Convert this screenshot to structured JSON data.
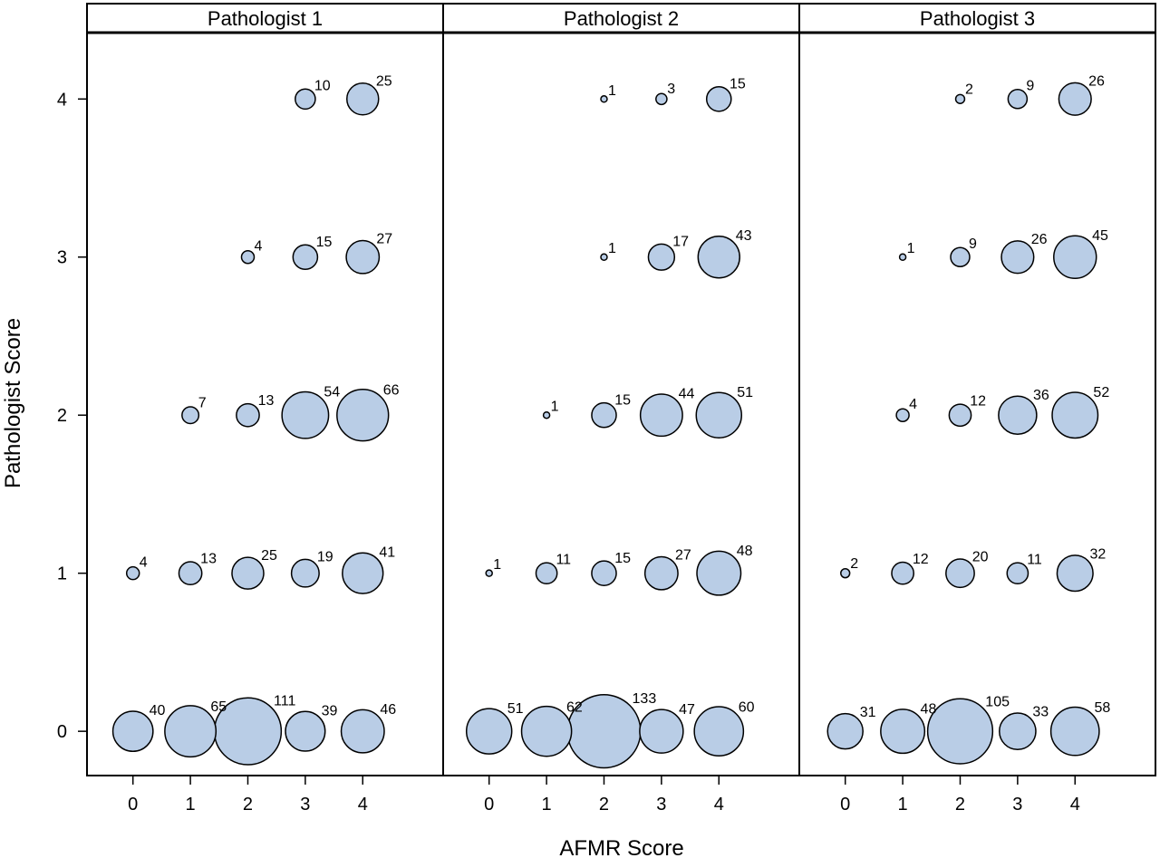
{
  "chart_data": {
    "type": "bubble",
    "xlabel": "AFMR Score",
    "ylabel": "Pathologist Score",
    "x_ticks": [
      "0",
      "1",
      "2",
      "3",
      "4"
    ],
    "y_ticks": [
      "0",
      "1",
      "2",
      "3",
      "4"
    ],
    "xlim": [
      -0.8,
      5.4
    ],
    "ylim": [
      -0.28,
      4.42
    ],
    "bubble_color": "#b9cde6",
    "grid": false,
    "legend": "none",
    "panels": [
      {
        "title": "Pathologist 1",
        "points": [
          {
            "x": 0,
            "y": 0,
            "n": 40,
            "label": "40"
          },
          {
            "x": 1,
            "y": 0,
            "n": 65,
            "label": "65"
          },
          {
            "x": 2,
            "y": 0,
            "n": 111,
            "label": "111"
          },
          {
            "x": 3,
            "y": 0,
            "n": 39,
            "label": "39"
          },
          {
            "x": 4,
            "y": 0,
            "n": 46,
            "label": "46"
          },
          {
            "x": 0,
            "y": 1,
            "n": 4,
            "label": "4"
          },
          {
            "x": 1,
            "y": 1,
            "n": 13,
            "label": "13"
          },
          {
            "x": 2,
            "y": 1,
            "n": 25,
            "label": "25"
          },
          {
            "x": 3,
            "y": 1,
            "n": 19,
            "label": "19"
          },
          {
            "x": 4,
            "y": 1,
            "n": 41,
            "label": "41"
          },
          {
            "x": 1,
            "y": 2,
            "n": 7,
            "label": "7"
          },
          {
            "x": 2,
            "y": 2,
            "n": 13,
            "label": "13"
          },
          {
            "x": 3,
            "y": 2,
            "n": 54,
            "label": "54"
          },
          {
            "x": 4,
            "y": 2,
            "n": 66,
            "label": "66"
          },
          {
            "x": 2,
            "y": 3,
            "n": 4,
            "label": "4"
          },
          {
            "x": 3,
            "y": 3,
            "n": 15,
            "label": "15"
          },
          {
            "x": 4,
            "y": 3,
            "n": 27,
            "label": "27"
          },
          {
            "x": 3,
            "y": 4,
            "n": 10,
            "label": "10"
          },
          {
            "x": 4,
            "y": 4,
            "n": 25,
            "label": "25"
          }
        ]
      },
      {
        "title": "Pathologist 2",
        "points": [
          {
            "x": 0,
            "y": 0,
            "n": 51,
            "label": "51"
          },
          {
            "x": 1,
            "y": 0,
            "n": 62,
            "label": "62"
          },
          {
            "x": 2,
            "y": 0,
            "n": 133,
            "label": "133"
          },
          {
            "x": 3,
            "y": 0,
            "n": 47,
            "label": "47"
          },
          {
            "x": 4,
            "y": 0,
            "n": 60,
            "label": "60"
          },
          {
            "x": 0,
            "y": 1,
            "n": 1,
            "label": "1"
          },
          {
            "x": 1,
            "y": 1,
            "n": 11,
            "label": "11"
          },
          {
            "x": 2,
            "y": 1,
            "n": 15,
            "label": "15"
          },
          {
            "x": 3,
            "y": 1,
            "n": 27,
            "label": "27"
          },
          {
            "x": 4,
            "y": 1,
            "n": 48,
            "label": "48"
          },
          {
            "x": 1,
            "y": 2,
            "n": 1,
            "label": "1"
          },
          {
            "x": 2,
            "y": 2,
            "n": 15,
            "label": "15"
          },
          {
            "x": 3,
            "y": 2,
            "n": 44,
            "label": "44"
          },
          {
            "x": 4,
            "y": 2,
            "n": 51,
            "label": "51"
          },
          {
            "x": 2,
            "y": 3,
            "n": 1,
            "label": "1"
          },
          {
            "x": 3,
            "y": 3,
            "n": 17,
            "label": "17"
          },
          {
            "x": 4,
            "y": 3,
            "n": 43,
            "label": "43"
          },
          {
            "x": 2,
            "y": 4,
            "n": 1,
            "label": "1"
          },
          {
            "x": 3,
            "y": 4,
            "n": 3,
            "label": "3"
          },
          {
            "x": 4,
            "y": 4,
            "n": 15,
            "label": "15"
          }
        ]
      },
      {
        "title": "Pathologist 3",
        "points": [
          {
            "x": 0,
            "y": 0,
            "n": 31,
            "label": "31"
          },
          {
            "x": 1,
            "y": 0,
            "n": 48,
            "label": "48"
          },
          {
            "x": 2,
            "y": 0,
            "n": 105,
            "label": "105"
          },
          {
            "x": 3,
            "y": 0,
            "n": 33,
            "label": "33"
          },
          {
            "x": 4,
            "y": 0,
            "n": 58,
            "label": "58"
          },
          {
            "x": 0,
            "y": 1,
            "n": 2,
            "label": "2"
          },
          {
            "x": 1,
            "y": 1,
            "n": 12,
            "label": "12"
          },
          {
            "x": 2,
            "y": 1,
            "n": 20,
            "label": "20"
          },
          {
            "x": 3,
            "y": 1,
            "n": 11,
            "label": "11"
          },
          {
            "x": 4,
            "y": 1,
            "n": 32,
            "label": "32"
          },
          {
            "x": 1,
            "y": 2,
            "n": 4,
            "label": "4"
          },
          {
            "x": 2,
            "y": 2,
            "n": 12,
            "label": "12"
          },
          {
            "x": 3,
            "y": 2,
            "n": 36,
            "label": "36"
          },
          {
            "x": 4,
            "y": 2,
            "n": 52,
            "label": "52"
          },
          {
            "x": 1,
            "y": 3,
            "n": 1,
            "label": "1"
          },
          {
            "x": 2,
            "y": 3,
            "n": 9,
            "label": "9"
          },
          {
            "x": 3,
            "y": 3,
            "n": 26,
            "label": "26"
          },
          {
            "x": 4,
            "y": 3,
            "n": 45,
            "label": "45"
          },
          {
            "x": 2,
            "y": 4,
            "n": 2,
            "label": "2"
          },
          {
            "x": 3,
            "y": 4,
            "n": 9,
            "label": "9"
          },
          {
            "x": 4,
            "y": 4,
            "n": 26,
            "label": "26"
          }
        ]
      }
    ]
  }
}
